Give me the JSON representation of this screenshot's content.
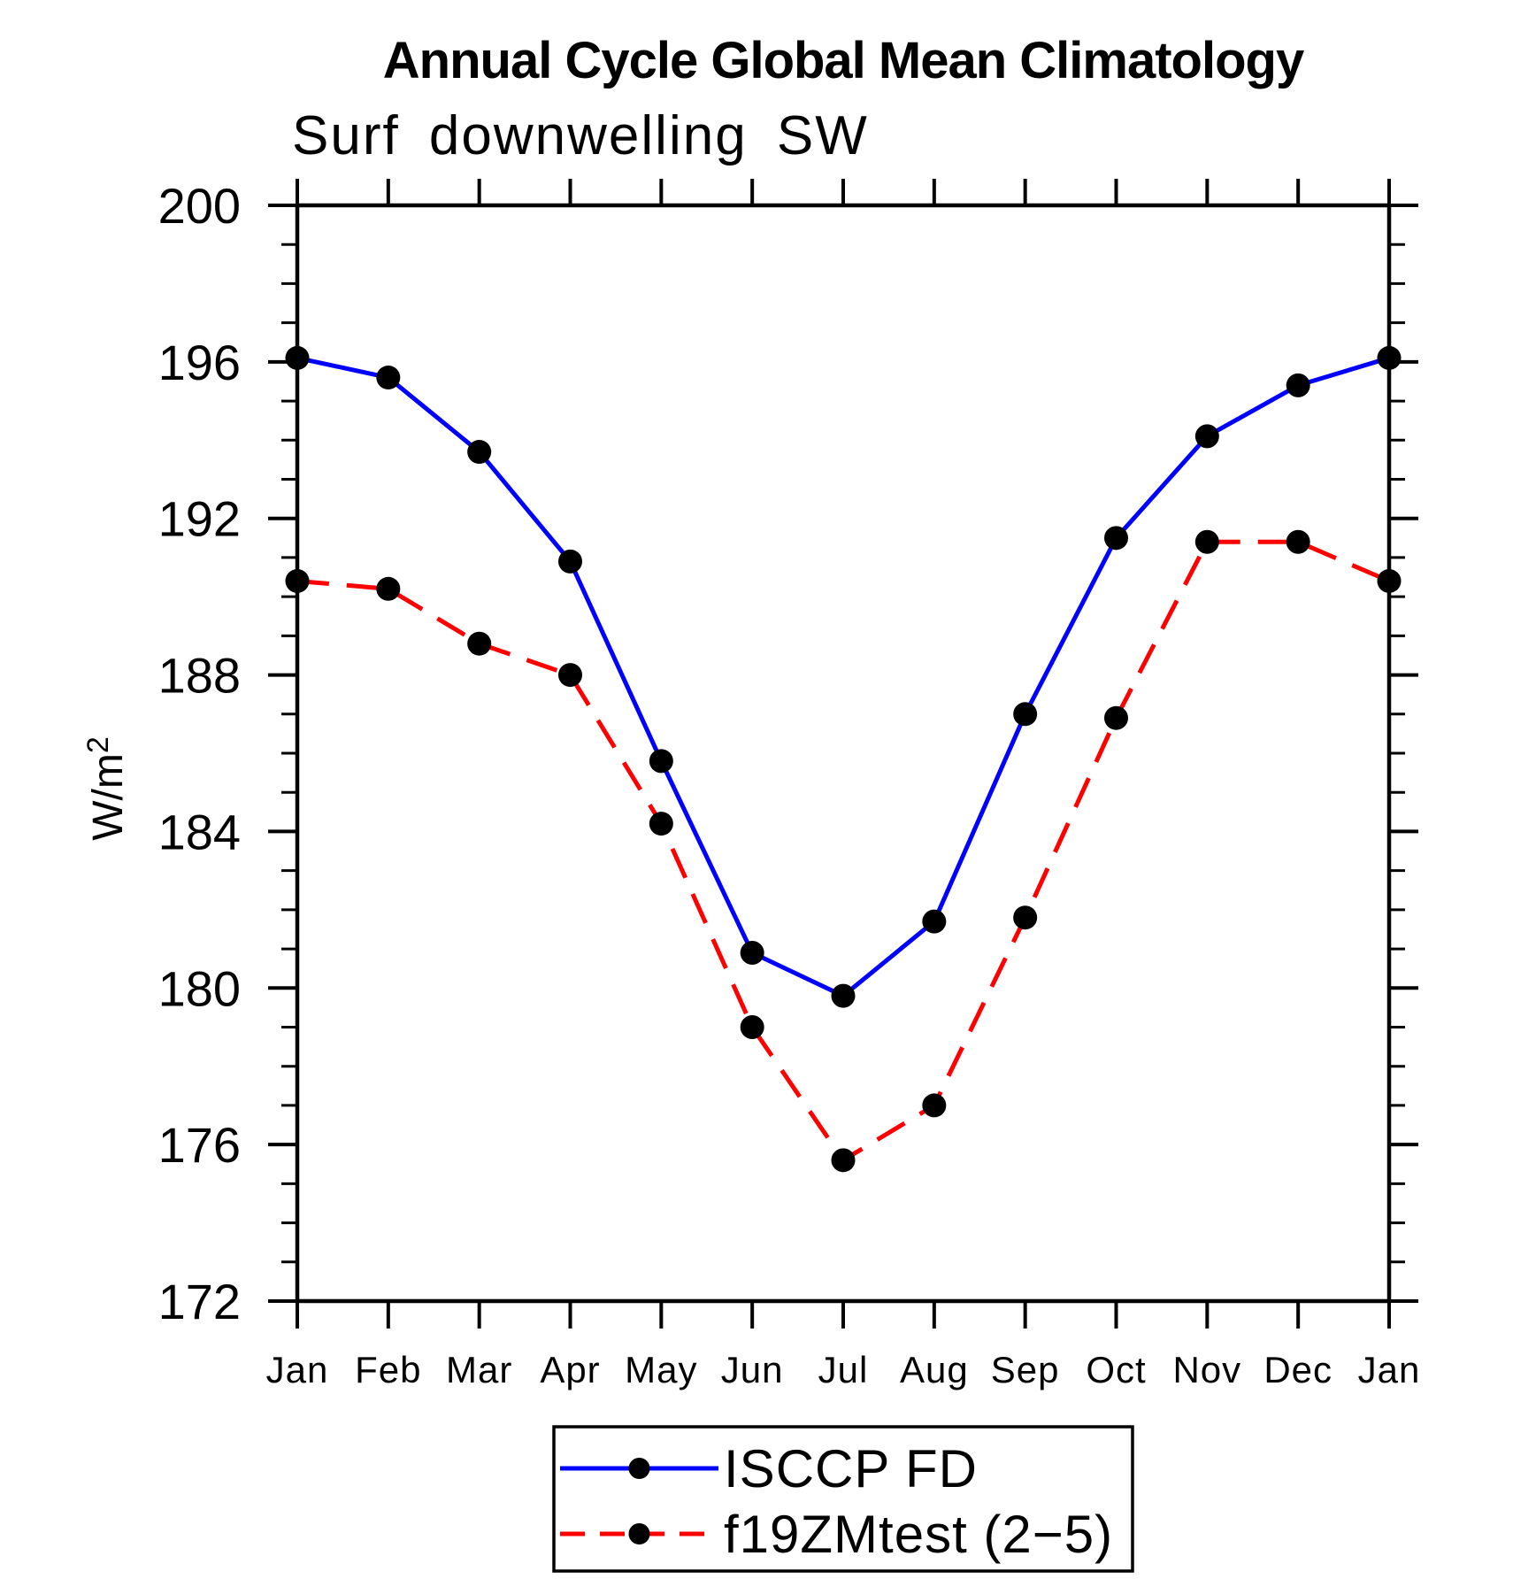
{
  "title": "Annual Cycle Global Mean Climatology",
  "subtitle": "Surf downwelling SW",
  "chart_data": {
    "type": "line",
    "title": "Annual Cycle Global Mean Climatology",
    "subtitle": "Surf downwelling SW",
    "ylabel": "W/m²",
    "ylabel_parts": {
      "base": "W/m",
      "sup": "2"
    },
    "xlabel": "",
    "ylim": [
      172,
      200
    ],
    "y_major_ticks": [
      200,
      196,
      192,
      188,
      184,
      180,
      176,
      172
    ],
    "y_minor_step": 1,
    "grid": false,
    "legend_position": "bottom-center",
    "x_categories": [
      "Jan",
      "Feb",
      "Mar",
      "Apr",
      "May",
      "Jun",
      "Jul",
      "Aug",
      "Sep",
      "Oct",
      "Nov",
      "Dec",
      "Jan"
    ],
    "series": [
      {
        "name": "ISCCP FD",
        "line_color": "#0000ff",
        "line_style": "solid",
        "marker": "filled-circle",
        "marker_color": "#000000",
        "values": [
          196.1,
          195.6,
          193.7,
          190.9,
          185.8,
          180.9,
          179.8,
          181.7,
          187.0,
          191.5,
          194.1,
          195.4,
          196.1
        ]
      },
      {
        "name": "f19ZMtest (2−5)",
        "line_color": "#ff0000",
        "line_style": "dashed",
        "marker": "filled-circle",
        "marker_color": "#000000",
        "values": [
          190.4,
          190.2,
          188.8,
          188.0,
          184.2,
          179.0,
          175.6,
          177.0,
          181.8,
          186.9,
          191.4,
          191.4,
          190.4
        ]
      }
    ]
  }
}
